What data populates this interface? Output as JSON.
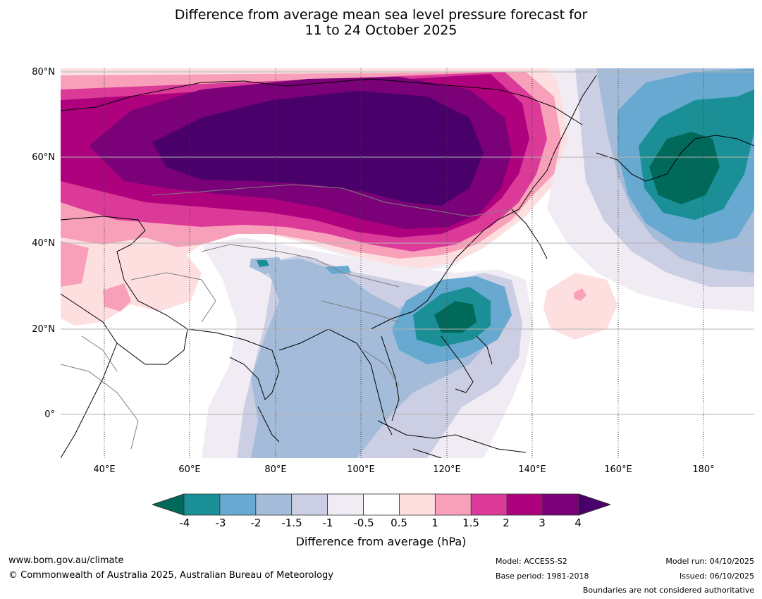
{
  "title": {
    "line1": "Difference from average mean sea level pressure forecast for",
    "line2": "11 to 24 October 2025"
  },
  "map": {
    "lat_labels": [
      "80°N",
      "60°N",
      "40°N",
      "20°N",
      "0°"
    ],
    "lon_labels": [
      "40°E",
      "60°E",
      "80°E",
      "100°E",
      "120°E",
      "140°E",
      "160°E",
      "180°"
    ],
    "extent": {
      "lon_min": 30,
      "lon_max": 191,
      "lat_min": -10,
      "lat_max": 81
    }
  },
  "colorbar": {
    "ticks": [
      "-4",
      "-3",
      "-2",
      "-1.5",
      "-1",
      "-0.5",
      "0.5",
      "1",
      "1.5",
      "2",
      "3",
      "4"
    ],
    "colors": [
      "#00695a",
      "#1b8f96",
      "#67a9d0",
      "#a4bcd9",
      "#cccfe3",
      "#f1ecf4",
      "#ffffff",
      "#fddfe0",
      "#f89fba",
      "#dc3a98",
      "#ae017e",
      "#7a0177",
      "#49006a"
    ],
    "label": "Difference from average (hPa)"
  },
  "footer": {
    "url": "www.bom.gov.au/climate",
    "copyright": "© Commonwealth of Australia 2025, Australian Bureau of Meteorology",
    "model": "Model: ACCESS-S2",
    "base_period": "Base period: 1981-2018",
    "model_run": "Model run: 04/10/2025",
    "issued": "Issued: 06/10/2025",
    "disclaimer": "Boundaries are not considered authoritative"
  }
}
